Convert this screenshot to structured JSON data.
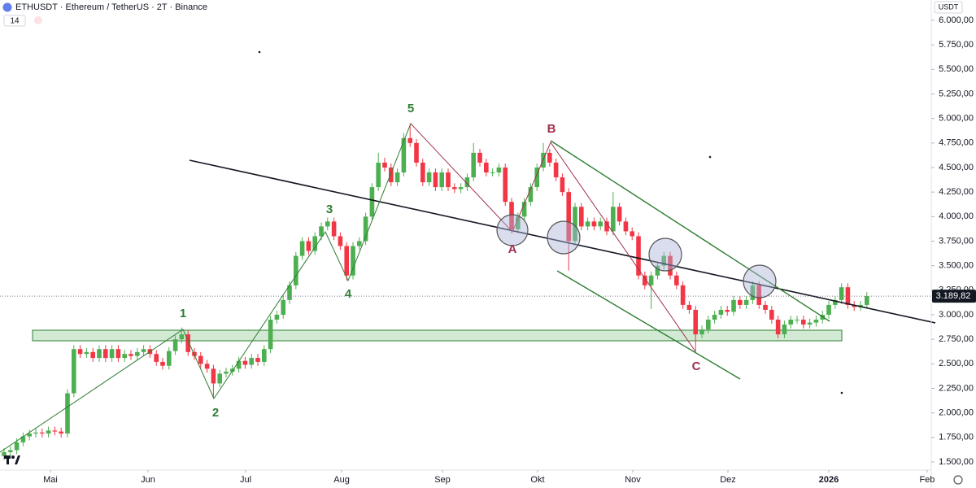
{
  "chart_data": {
    "type": "candlestick",
    "title": "ETHUSDT · Ethereum / TetherUS · 2T · Binance",
    "indicator": "14",
    "currency": "USDT",
    "up_color": "#4caf50",
    "down_color": "#f23645",
    "ylim": [
      1417,
      6207
    ],
    "yticks": [
      {
        "value": 1500,
        "label": "1.500,00"
      },
      {
        "value": 1750,
        "label": "1.750,00"
      },
      {
        "value": 2000,
        "label": "2.000,00"
      },
      {
        "value": 2250,
        "label": "2.250,00"
      },
      {
        "value": 2500,
        "label": "2.500,00"
      },
      {
        "value": 2750,
        "label": "2.750,00"
      },
      {
        "value": 3000,
        "label": "3.000,00"
      },
      {
        "value": 3250,
        "label": "3.250,00"
      },
      {
        "value": 3500,
        "label": "3.500,00"
      },
      {
        "value": 3750,
        "label": "3.750,00"
      },
      {
        "value": 4000,
        "label": "4.000,00"
      },
      {
        "value": 4250,
        "label": "4.250,00"
      },
      {
        "value": 4500,
        "label": "4.500,00"
      },
      {
        "value": 4750,
        "label": "4.750,00"
      },
      {
        "value": 5000,
        "label": "5.000,00"
      },
      {
        "value": 5250,
        "label": "5.250,00"
      },
      {
        "value": 5500,
        "label": "5.500,00"
      },
      {
        "value": 5750,
        "label": "5.750,00"
      },
      {
        "value": 6000,
        "label": "6.000,00"
      }
    ],
    "xlim": [
      -0.64,
      146.15
    ],
    "xticks": [
      {
        "value": 7.31,
        "label": "Mai"
      },
      {
        "value": 22.69,
        "label": "Jun"
      },
      {
        "value": 38.08,
        "label": "Jul"
      },
      {
        "value": 53.21,
        "label": "Aug"
      },
      {
        "value": 69.1,
        "label": "Sep"
      },
      {
        "value": 84.1,
        "label": "Okt"
      },
      {
        "value": 99.1,
        "label": "Nov"
      },
      {
        "value": 114.1,
        "label": "Dez"
      },
      {
        "value": 130.0,
        "label": "2026"
      },
      {
        "value": 145.5,
        "label": "Feb"
      }
    ],
    "last_price": {
      "value": 3189.82,
      "label": "3.189,82"
    },
    "annotations": [
      "1",
      "2",
      "3",
      "4",
      "5",
      "A",
      "B",
      "C"
    ],
    "open": [
      1560,
      1600,
      1620,
      1700,
      1760,
      1790,
      1800,
      1790,
      1820,
      1810,
      1790,
      2200,
      2650,
      2600,
      2620,
      2560,
      2650,
      2560,
      2650,
      2560,
      2600,
      2580,
      2620,
      2650,
      2600,
      2520,
      2480,
      2630,
      2750,
      2800,
      2620,
      2580,
      2500,
      2450,
      2300,
      2400,
      2420,
      2450,
      2530,
      2490,
      2560,
      2520,
      2650,
      2950,
      3000,
      3150,
      3300,
      3600,
      3750,
      3650,
      3800,
      3900,
      3950,
      3800,
      3700,
      3400,
      3700,
      3750,
      4000,
      4300,
      4550,
      4500,
      4350,
      4450,
      4800,
      4750,
      4550,
      4350,
      4450,
      4300,
      4450,
      4300,
      4280,
      4300,
      4400,
      4650,
      4550,
      4450,
      4450,
      4500,
      4150,
      3870,
      4000,
      4150,
      4300,
      4500,
      4650,
      4550,
      4400,
      4250,
      3750,
      4100,
      3900,
      3950,
      3900,
      3950,
      3850,
      4100,
      3950,
      3850,
      3800,
      3400,
      3300,
      3400,
      3500,
      3600,
      3400,
      3300,
      3100,
      3050,
      2800,
      2850,
      2950,
      3000,
      3050,
      3030,
      3150,
      3100,
      3150,
      3300,
      3100,
      3050,
      2950,
      2800,
      2900,
      2950,
      2950,
      2900,
      2920,
      2950,
      3000,
      3100,
      3150,
      3280,
      3100,
      3080,
      3100
    ],
    "high": [
      1640,
      1660,
      1740,
      1800,
      1830,
      1840,
      1840,
      1860,
      1860,
      1850,
      2240,
      2690,
      2690,
      2660,
      2660,
      2690,
      2690,
      2690,
      2690,
      2640,
      2640,
      2660,
      2690,
      2690,
      2640,
      2560,
      2670,
      2790,
      2870,
      2840,
      2660,
      2620,
      2540,
      2490,
      2440,
      2460,
      2490,
      2570,
      2570,
      2600,
      2600,
      2690,
      2990,
      3040,
      3190,
      3340,
      3640,
      3790,
      3790,
      3840,
      3940,
      3990,
      3990,
      3840,
      3740,
      3740,
      3790,
      4040,
      4340,
      4650,
      4600,
      4540,
      4490,
      4850,
      4950,
      4790,
      4590,
      4490,
      4490,
      4490,
      4490,
      4340,
      4340,
      4440,
      4750,
      4690,
      4590,
      4490,
      4540,
      4540,
      4190,
      4040,
      4190,
      4340,
      4540,
      4750,
      4690,
      4590,
      4440,
      4290,
      4140,
      4140,
      3990,
      3990,
      3990,
      3990,
      4250,
      4140,
      3990,
      3890,
      3840,
      3440,
      3440,
      3540,
      3640,
      3640,
      3440,
      3340,
      3140,
      3090,
      2890,
      2990,
      3040,
      3090,
      3090,
      3190,
      3190,
      3190,
      3340,
      3340,
      3140,
      3090,
      2990,
      2940,
      2990,
      2990,
      2990,
      2960,
      2990,
      3040,
      3140,
      3190,
      3320,
      3320,
      3140,
      3140,
      3230
    ],
    "low": [
      1520,
      1560,
      1580,
      1660,
      1720,
      1750,
      1750,
      1750,
      1770,
      1750,
      1750,
      2160,
      2560,
      2560,
      2520,
      2520,
      2520,
      2520,
      2520,
      2520,
      2540,
      2540,
      2580,
      2560,
      2480,
      2440,
      2440,
      2590,
      2710,
      2580,
      2540,
      2460,
      2410,
      2150,
      2260,
      2360,
      2380,
      2410,
      2450,
      2450,
      2480,
      2480,
      2610,
      2910,
      2960,
      3110,
      3260,
      3560,
      3610,
      3610,
      3760,
      3860,
      3760,
      3660,
      3350,
      3360,
      3660,
      3710,
      3960,
      4260,
      4460,
      4310,
      4310,
      4410,
      4710,
      4510,
      4310,
      4310,
      4260,
      4260,
      4260,
      4240,
      4240,
      4260,
      4360,
      4510,
      4410,
      4410,
      4410,
      4110,
      3830,
      3830,
      3960,
      4110,
      4260,
      4460,
      4510,
      4360,
      4210,
      3450,
      3710,
      3860,
      3860,
      3860,
      3860,
      3810,
      3810,
      3910,
      3810,
      3760,
      3360,
      3260,
      3060,
      3360,
      3460,
      3360,
      3260,
      3060,
      3010,
      2620,
      2760,
      2810,
      2910,
      2960,
      2990,
      2990,
      3060,
      3060,
      3110,
      3060,
      3010,
      2910,
      2760,
      2760,
      2860,
      2910,
      2860,
      2860,
      2880,
      2910,
      2960,
      3060,
      3110,
      3060,
      3040,
      3040,
      3060
    ],
    "close": [
      1600,
      1620,
      1700,
      1760,
      1790,
      1800,
      1790,
      1820,
      1810,
      1790,
      2200,
      2650,
      2600,
      2620,
      2560,
      2650,
      2560,
      2650,
      2560,
      2600,
      2580,
      2620,
      2650,
      2600,
      2520,
      2480,
      2630,
      2750,
      2800,
      2620,
      2580,
      2500,
      2450,
      2300,
      2400,
      2420,
      2450,
      2530,
      2490,
      2560,
      2520,
      2650,
      2950,
      3000,
      3150,
      3300,
      3600,
      3750,
      3650,
      3800,
      3900,
      3950,
      3800,
      3700,
      3400,
      3700,
      3750,
      4000,
      4300,
      4550,
      4500,
      4350,
      4450,
      4800,
      4750,
      4550,
      4350,
      4450,
      4300,
      4450,
      4300,
      4280,
      4300,
      4400,
      4650,
      4550,
      4450,
      4450,
      4500,
      4150,
      3870,
      4000,
      4150,
      4300,
      4500,
      4650,
      4550,
      4400,
      4250,
      3750,
      4100,
      3900,
      3950,
      3900,
      3950,
      3850,
      4100,
      3950,
      3850,
      3800,
      3400,
      3300,
      3400,
      3500,
      3600,
      3400,
      3300,
      3100,
      3050,
      2800,
      2850,
      2950,
      3000,
      3050,
      3030,
      3150,
      3100,
      3150,
      3300,
      3100,
      3050,
      2950,
      2800,
      2900,
      2950,
      2950,
      2900,
      2920,
      2950,
      3000,
      3100,
      3150,
      3280,
      3100,
      3080,
      3100,
      3190
    ]
  }
}
